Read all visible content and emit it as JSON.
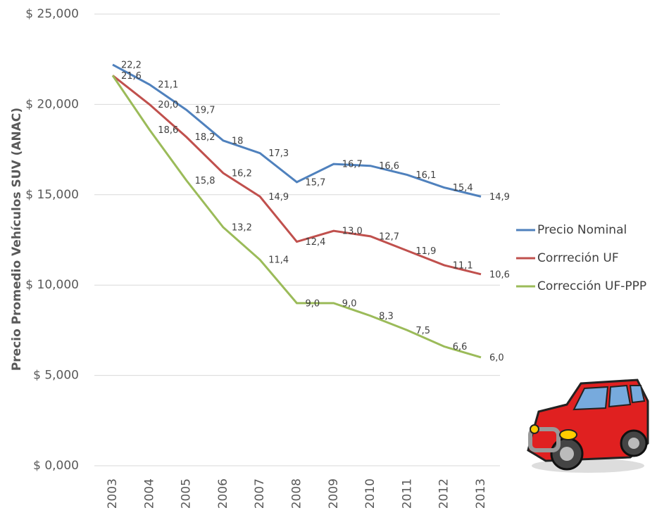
{
  "chart_data": {
    "type": "line",
    "y_label": "Precio Promedio Vehículos SUV (ANAC)",
    "x": [
      "2003",
      "2004",
      "2005",
      "2006",
      "2007",
      "2008",
      "2009",
      "2010",
      "2011",
      "2012",
      "2013"
    ],
    "ylim": [
      0,
      25000
    ],
    "yticks": [
      {
        "value": 0,
        "label": "$ 0,000"
      },
      {
        "value": 5000,
        "label": "$ 5,000"
      },
      {
        "value": 10000,
        "label": "$ 10,000"
      },
      {
        "value": 15000,
        "label": "$ 15,000"
      },
      {
        "value": 20000,
        "label": "$ 20,000"
      },
      {
        "value": 25000,
        "label": "$ 25,000"
      }
    ],
    "grid": true,
    "legend": "right",
    "series": [
      {
        "name": "Precio Nominal",
        "color": "#4f81bd",
        "values": [
          22200,
          21100,
          19700,
          18000,
          17300,
          15700,
          16700,
          16600,
          16100,
          15400,
          14900
        ],
        "value_labels": [
          "22,2",
          "21,1",
          "19,7",
          "18",
          "17,3",
          "15,7",
          "16,7",
          "16,6",
          "16,1",
          "15,4",
          "14,9"
        ]
      },
      {
        "name": "Corrreción UF",
        "color": "#c0504d",
        "values": [
          21600,
          20000,
          18200,
          16200,
          14900,
          12400,
          13000,
          12700,
          11900,
          11100,
          10600
        ],
        "value_labels": [
          "21,6",
          "20,0",
          "18,2",
          "16,2",
          "14,9",
          "12,4",
          "13,0",
          "12,7",
          "11,9",
          "11,1",
          "10,6"
        ]
      },
      {
        "name": "Corrección UF-PPP",
        "color": "#9bbb59",
        "values": [
          21600,
          18600,
          15800,
          13200,
          11400,
          9000,
          9000,
          8300,
          7500,
          6600,
          6000
        ],
        "value_labels": [
          null,
          "18,6",
          "15,8",
          "13,2",
          "11,4",
          "9,0",
          "9,0",
          "8,3",
          "7,5",
          "6,6",
          "6,0"
        ]
      }
    ]
  }
}
